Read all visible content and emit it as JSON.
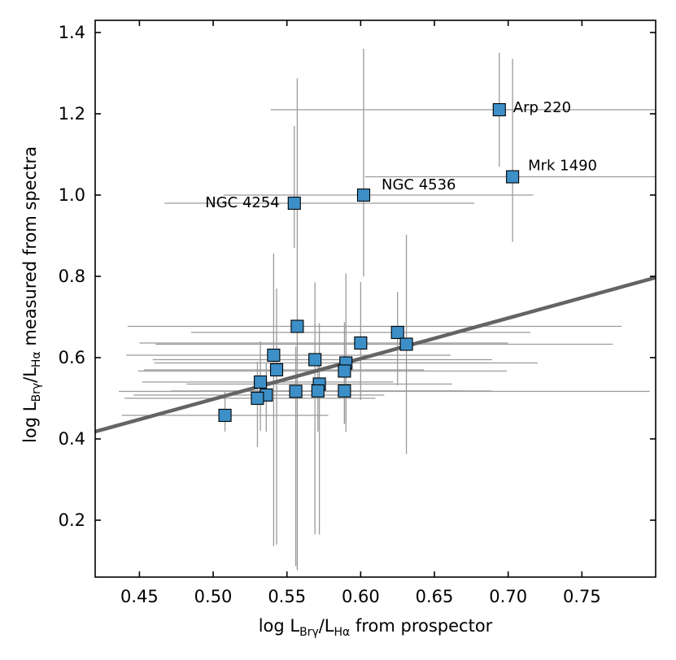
{
  "chart_data": {
    "type": "scatter",
    "title": "",
    "xlabel": {
      "prefix": "log L",
      "sub1": "Brγ",
      "mid": "/L",
      "sub2": "Hα",
      "suffix": " from prospector"
    },
    "ylabel": {
      "prefix": "log L",
      "sub1": "Brγ",
      "mid": "/L",
      "sub2": "Hα",
      "suffix": " measured from spectra"
    },
    "xlim": [
      0.42,
      0.8
    ],
    "ylim": [
      0.06,
      1.43
    ],
    "xticks": [
      0.45,
      0.5,
      0.55,
      0.6,
      0.65,
      0.7,
      0.75
    ],
    "xtick_labels": [
      "0.45",
      "0.50",
      "0.55",
      "0.60",
      "0.65",
      "0.70",
      "0.75"
    ],
    "yticks": [
      0.2,
      0.4,
      0.6,
      0.8,
      1.0,
      1.2,
      1.4
    ],
    "ytick_labels": [
      "0.2",
      "0.4",
      "0.6",
      "0.8",
      "1.0",
      "1.2",
      "1.4"
    ],
    "fit_line": {
      "x": [
        0.42,
        0.8
      ],
      "y": [
        0.418,
        0.797
      ],
      "color": "#646464"
    },
    "marker_color": "#3d8fc7",
    "errorbar_color": "#9a9a9a",
    "points": [
      {
        "x": 0.694,
        "y": 1.21,
        "xerr": [
          0.155,
          0.11
        ],
        "yerr": [
          0.14,
          0.14
        ],
        "label": "Arp 220"
      },
      {
        "x": 0.703,
        "y": 1.045,
        "xerr": [
          0.1,
          0.11
        ],
        "yerr": [
          0.16,
          0.29
        ],
        "label": "Mrk 1490"
      },
      {
        "x": 0.602,
        "y": 1.0,
        "xerr": [
          0.095,
          0.115
        ],
        "yerr": [
          0.2,
          0.36
        ],
        "label": "NGC 4536"
      },
      {
        "x": 0.555,
        "y": 0.98,
        "xerr": [
          0.088,
          0.122
        ],
        "yerr": [
          0.11,
          0.19
        ],
        "label": "NGC 4254"
      },
      {
        "x": 0.557,
        "y": 0.677,
        "xerr": [
          0.115,
          0.22
        ],
        "yerr": [
          0.6,
          0.61
        ]
      },
      {
        "x": 0.625,
        "y": 0.662,
        "xerr": [
          0.14,
          0.09
        ],
        "yerr": [
          0.13,
          0.1
        ]
      },
      {
        "x": 0.631,
        "y": 0.633,
        "xerr": [
          0.17,
          0.14
        ],
        "yerr": [
          0.27,
          0.27
        ]
      },
      {
        "x": 0.6,
        "y": 0.636,
        "xerr": [
          0.15,
          0.1
        ],
        "yerr": [
          0.14,
          0.15
        ]
      },
      {
        "x": 0.541,
        "y": 0.606,
        "xerr": [
          0.1,
          0.12
        ],
        "yerr": [
          0.47,
          0.25
        ]
      },
      {
        "x": 0.569,
        "y": 0.595,
        "xerr": [
          0.11,
          0.12
        ],
        "yerr": [
          0.43,
          0.19
        ]
      },
      {
        "x": 0.59,
        "y": 0.587,
        "xerr": [
          0.13,
          0.13
        ],
        "yerr": [
          0.17,
          0.22
        ]
      },
      {
        "x": 0.589,
        "y": 0.567,
        "xerr": [
          0.14,
          0.11
        ],
        "yerr": [
          0.13,
          0.12
        ]
      },
      {
        "x": 0.543,
        "y": 0.57,
        "xerr": [
          0.09,
          0.1
        ],
        "yerr": [
          0.43,
          0.2
        ]
      },
      {
        "x": 0.532,
        "y": 0.54,
        "xerr": [
          0.08,
          0.09
        ],
        "yerr": [
          0.12,
          0.1
        ]
      },
      {
        "x": 0.572,
        "y": 0.535,
        "xerr": [
          0.09,
          0.09
        ],
        "yerr": [
          0.37,
          0.15
        ]
      },
      {
        "x": 0.556,
        "y": 0.517,
        "xerr": [
          0.12,
          0.24
        ],
        "yerr": [
          0.43,
          0.11
        ]
      },
      {
        "x": 0.571,
        "y": 0.518,
        "xerr": [
          0.1,
          0.1
        ],
        "yerr": [
          0.1,
          0.09
        ]
      },
      {
        "x": 0.589,
        "y": 0.518,
        "xerr": [
          0.1,
          0.1
        ],
        "yerr": [
          0.08,
          0.07
        ]
      },
      {
        "x": 0.536,
        "y": 0.508,
        "xerr": [
          0.09,
          0.08
        ],
        "yerr": [
          0.09,
          0.08
        ]
      },
      {
        "x": 0.53,
        "y": 0.5,
        "xerr": [
          0.09,
          0.08
        ],
        "yerr": [
          0.12,
          0.09
        ]
      },
      {
        "x": 0.508,
        "y": 0.458,
        "xerr": [
          0.07,
          0.07
        ],
        "yerr": [
          0.04,
          0.06
        ]
      }
    ]
  }
}
